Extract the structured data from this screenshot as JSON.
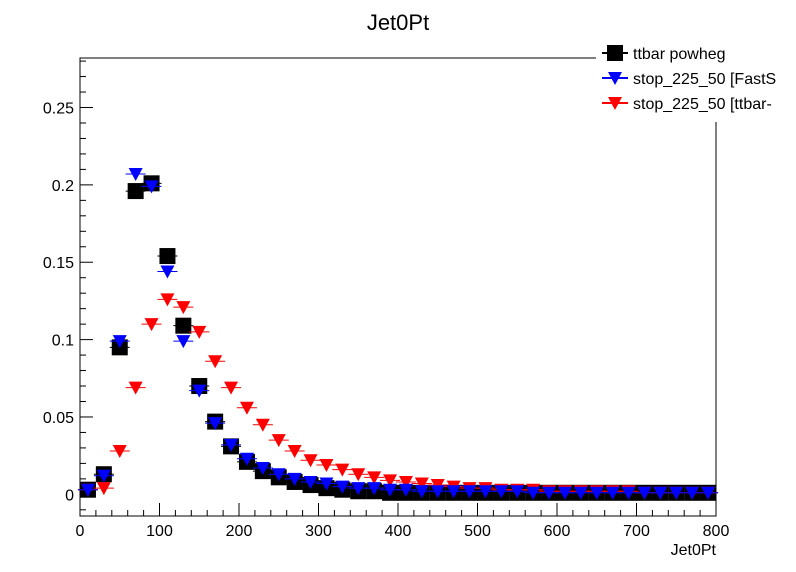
{
  "chart_data": {
    "type": "scatter",
    "title": "Jet0Pt",
    "xlabel": "Jet0Pt",
    "ylabel": "",
    "xlim": [
      0,
      800
    ],
    "ylim": [
      -0.014,
      0.282
    ],
    "xticks": [
      0,
      100,
      200,
      300,
      400,
      500,
      600,
      700,
      800
    ],
    "yticks": [
      0,
      0.05,
      0.1,
      0.15,
      0.2,
      0.25
    ],
    "ytick_labels": [
      "0",
      "0.05",
      "0.1",
      "0.15",
      "0.2",
      "0.25"
    ],
    "legend_position": "top-right",
    "x": [
      10,
      30,
      50,
      70,
      90,
      110,
      130,
      150,
      170,
      190,
      210,
      230,
      250,
      270,
      290,
      310,
      330,
      350,
      370,
      390,
      410,
      430,
      450,
      470,
      490,
      510,
      530,
      550,
      570,
      590,
      610,
      630,
      650,
      670,
      690,
      710,
      730,
      750,
      770,
      790
    ],
    "series": [
      {
        "name": "ttbar powheg",
        "marker": "square",
        "color": "#000000",
        "values": [
          0.003,
          0.013,
          0.095,
          0.196,
          0.201,
          0.154,
          0.109,
          0.07,
          0.047,
          0.031,
          0.021,
          0.015,
          0.011,
          0.008,
          0.006,
          0.004,
          0.003,
          0.002,
          0.002,
          0.001,
          0.001,
          0.001,
          0.001,
          0.001,
          0.001,
          0.001,
          0.001,
          0.001,
          0.001,
          0.001,
          0.001,
          0.001,
          0.001,
          0.001,
          0.001,
          0.001,
          0.001,
          0.001,
          0.001,
          0.001
        ]
      },
      {
        "name": "stop_225_50 [FastS",
        "marker": "triangle-down",
        "color": "#0000ff",
        "values": [
          0.003,
          0.012,
          0.099,
          0.207,
          0.199,
          0.144,
          0.099,
          0.067,
          0.046,
          0.032,
          0.023,
          0.017,
          0.013,
          0.01,
          0.008,
          0.007,
          0.005,
          0.004,
          0.004,
          0.003,
          0.003,
          0.002,
          0.002,
          0.002,
          0.002,
          0.002,
          0.002,
          0.002,
          0.001,
          0.001,
          0.001,
          0.001,
          0.001,
          0.001,
          0.001,
          0.001,
          0.001,
          0.001,
          0.001,
          0.001
        ]
      },
      {
        "name": "stop_225_50 [ttbar-",
        "marker": "triangle-down",
        "color": "#ff0000",
        "values": [
          0.003,
          0.004,
          0.028,
          0.069,
          0.11,
          0.126,
          0.121,
          0.105,
          0.086,
          0.069,
          0.056,
          0.045,
          0.035,
          0.028,
          0.022,
          0.019,
          0.016,
          0.013,
          0.011,
          0.009,
          0.008,
          0.007,
          0.006,
          0.005,
          0.004,
          0.004,
          0.003,
          0.003,
          0.003,
          0.002,
          0.002,
          0.002,
          0.002,
          0.002,
          0.002,
          0.001,
          0.001,
          0.001,
          0.001,
          0.001
        ]
      }
    ]
  }
}
